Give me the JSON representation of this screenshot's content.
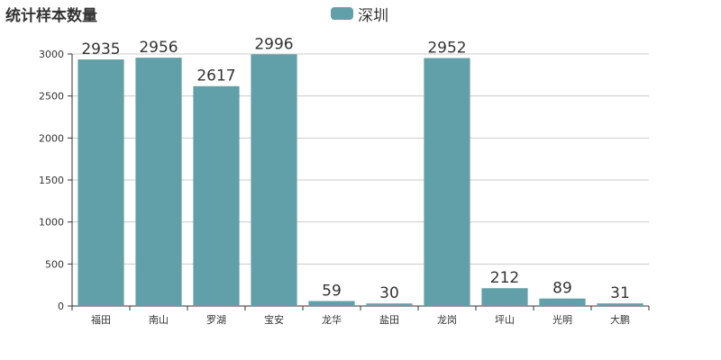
{
  "chart_data": {
    "type": "bar",
    "title": "统计样本数量",
    "categories": [
      "福田",
      "南山",
      "罗湖",
      "宝安",
      "龙华",
      "盐田",
      "龙岗",
      "坪山",
      "光明",
      "大鹏"
    ],
    "series": [
      {
        "name": "深圳",
        "values": [
          2935,
          2956,
          2617,
          2996,
          59,
          30,
          2952,
          212,
          89,
          31
        ],
        "color": "#61a0a8"
      }
    ],
    "yticks": [
      0,
      500,
      1000,
      1500,
      2000,
      2500,
      3000
    ],
    "ylim": [
      0,
      3000
    ],
    "grid": true,
    "legend_position": "top-center",
    "colors": {
      "bar": "#61a0a8",
      "grid": "#cccccc",
      "axis": "#333333",
      "text": "#333333"
    }
  }
}
